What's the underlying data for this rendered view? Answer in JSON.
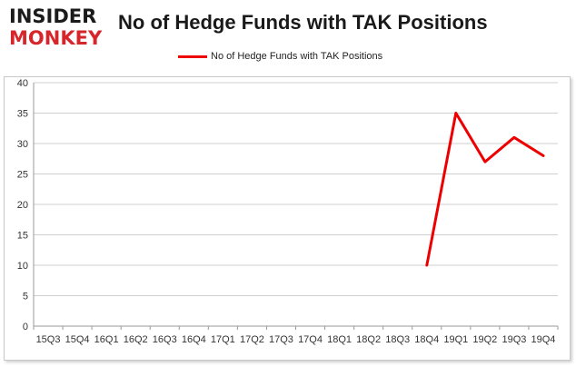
{
  "branding": {
    "logo_line1": "INSIDER",
    "logo_line2": "MONKEY"
  },
  "chart_data": {
    "type": "line",
    "title": "No of Hedge Funds with TAK Positions",
    "categories": [
      "15Q3",
      "15Q4",
      "16Q1",
      "16Q2",
      "16Q3",
      "16Q4",
      "17Q1",
      "17Q2",
      "17Q3",
      "17Q4",
      "18Q1",
      "18Q2",
      "18Q3",
      "18Q4",
      "19Q1",
      "19Q2",
      "19Q3",
      "19Q4"
    ],
    "series": [
      {
        "name": "No of Hedge Funds with TAK Positions",
        "color": "#ee0000",
        "values": [
          null,
          null,
          null,
          null,
          null,
          null,
          null,
          null,
          null,
          null,
          null,
          null,
          null,
          10,
          35,
          27,
          31,
          28
        ]
      }
    ],
    "ylim": [
      0,
      40
    ],
    "yticks": [
      0,
      5,
      10,
      15,
      20,
      25,
      30,
      35,
      40
    ],
    "grid": true,
    "legend_position": "top"
  }
}
